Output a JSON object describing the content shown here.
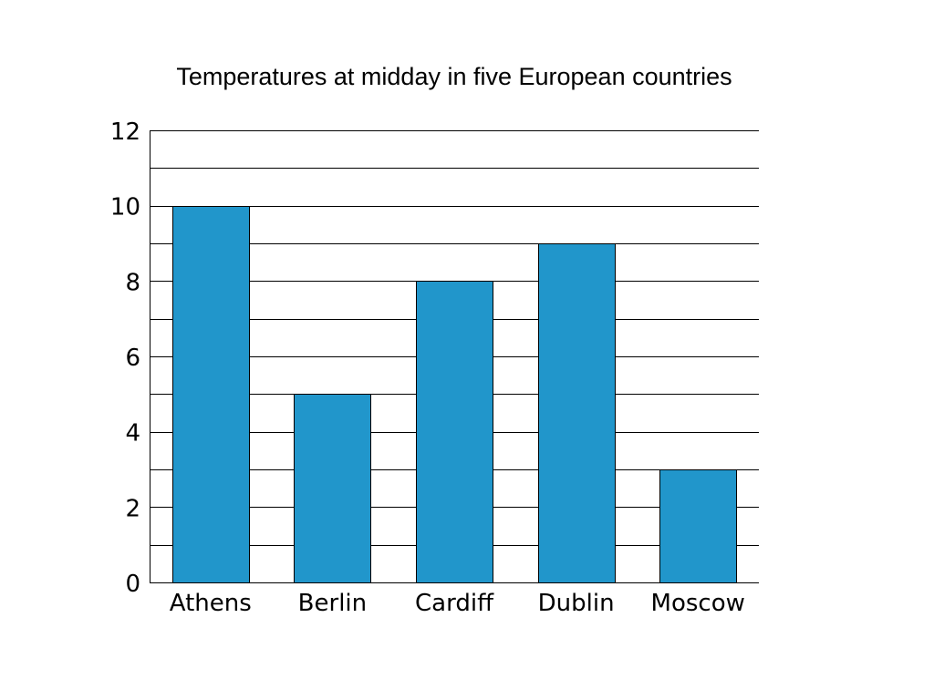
{
  "chart_data": {
    "type": "bar",
    "title": "Temperatures at midday in five European countries",
    "categories": [
      "Athens",
      "Berlin",
      "Cardiff",
      "Dublin",
      "Moscow"
    ],
    "values": [
      10,
      5,
      8,
      9,
      3
    ],
    "xlabel": "",
    "ylabel": "",
    "ylim": [
      0,
      12
    ],
    "yticks": [
      "0",
      "2",
      "4",
      "6",
      "8",
      "10",
      "12"
    ],
    "grid": true,
    "bar_color": "#2196CB"
  }
}
